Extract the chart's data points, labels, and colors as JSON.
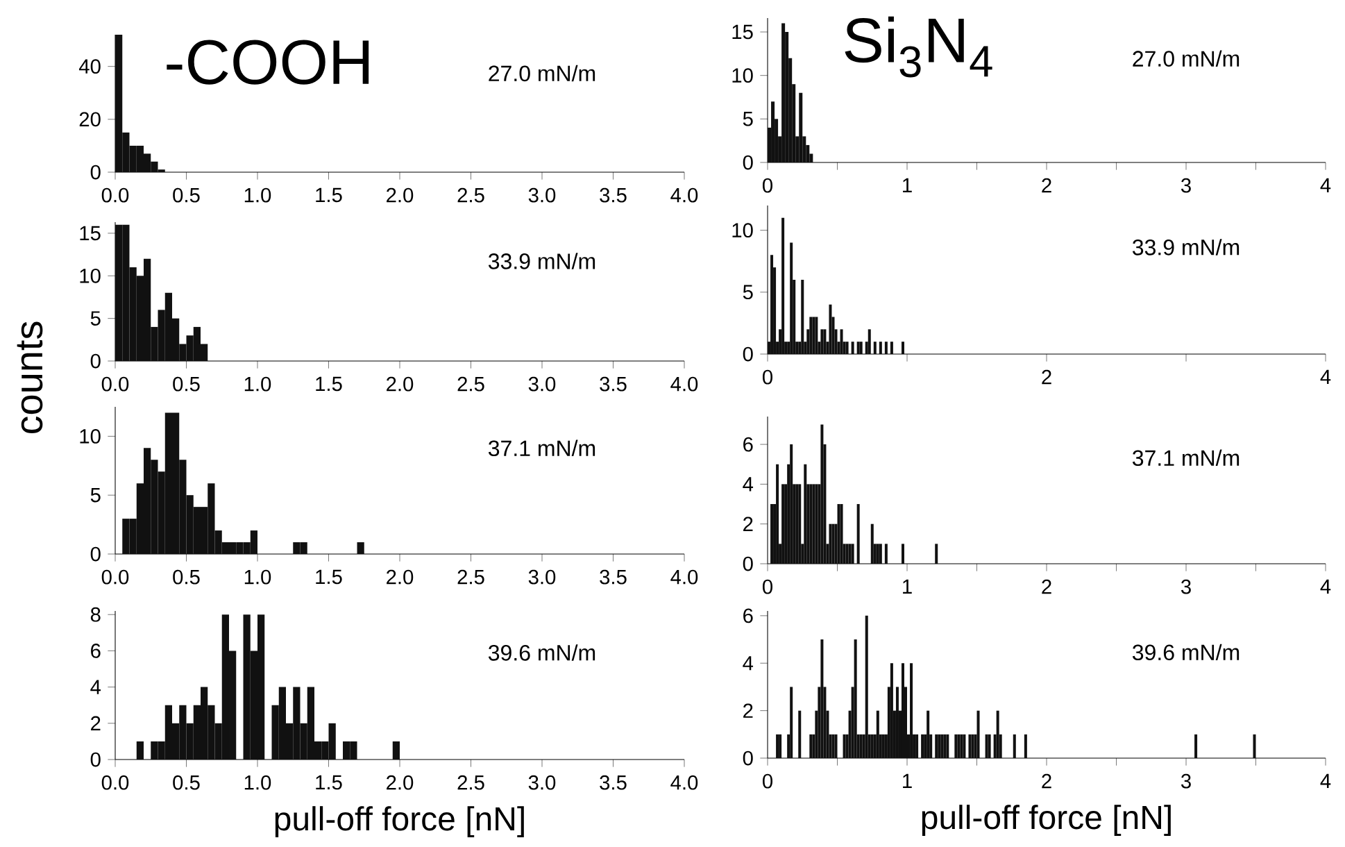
{
  "chart_data": [
    {
      "type": "histogram",
      "color": "#111111",
      "annotations": [
        "27.0 mN/m",
        "-COOH"
      ],
      "xlim": [
        0,
        4
      ],
      "ylim": [
        0,
        52
      ],
      "yticks": [
        0,
        20,
        40
      ],
      "xticks": [
        {
          "value": 0,
          "label": "0.0"
        },
        {
          "value": 0.5,
          "label": "0.5"
        },
        {
          "value": 1,
          "label": "1.0"
        },
        {
          "value": 1.5,
          "label": "1.5"
        },
        {
          "value": 2,
          "label": "2.0"
        },
        {
          "value": 2.5,
          "label": "2.5"
        },
        {
          "value": 3,
          "label": "3.0"
        },
        {
          "value": 3.5,
          "label": "3.5"
        },
        {
          "value": 4,
          "label": "4.0"
        }
      ],
      "bins": [
        0,
        0.05,
        0.1,
        0.15,
        0.2,
        0.25,
        0.3,
        0.35
      ],
      "values": [
        52,
        15,
        10,
        10,
        7,
        4,
        1
      ]
    },
    {
      "type": "histogram",
      "color": "#111111",
      "annotations": [
        "27.0 mN/m",
        "Si$_{3}$N$_{4}$"
      ],
      "xlim": [
        0,
        4
      ],
      "ylim": [
        0,
        16.6
      ],
      "yticks": [
        0,
        5,
        10,
        15
      ],
      "xticks": [
        0,
        {
          "value": 0.5,
          "label": null
        },
        1,
        {
          "value": 1.5,
          "label": null
        },
        2,
        {
          "value": 2.5,
          "label": null
        },
        3,
        {
          "value": 3.5,
          "label": null
        },
        4
      ],
      "bins": [
        0,
        0.025,
        0.05,
        0.075,
        0.1,
        0.125,
        0.15,
        0.175,
        0.2,
        0.225,
        0.25,
        0.275,
        0.3,
        0.325
      ],
      "values": [
        4,
        7,
        5,
        3,
        16,
        15,
        12,
        9,
        3,
        8,
        3,
        2,
        1
      ]
    },
    {
      "type": "histogram",
      "color": "#111111",
      "annotations": [
        "33.9 mN/m"
      ],
      "ylabel": "counts",
      "xlim": [
        0,
        4
      ],
      "ylim": [
        0,
        16.3
      ],
      "yticks": [
        0,
        5,
        10,
        15
      ],
      "xticks": [
        {
          "value": 0,
          "label": "0.0"
        },
        {
          "value": 0.5,
          "label": "0.5"
        },
        {
          "value": 1,
          "label": "1.0"
        },
        {
          "value": 1.5,
          "label": "1.5"
        },
        {
          "value": 2,
          "label": "2.0"
        },
        {
          "value": 2.5,
          "label": "2.5"
        },
        {
          "value": 3,
          "label": "3.0"
        },
        {
          "value": 3.5,
          "label": "3.5"
        },
        {
          "value": 4,
          "label": "4.0"
        }
      ],
      "bins": [
        0,
        0.05,
        0.1,
        0.15,
        0.2,
        0.25,
        0.3,
        0.35,
        0.4,
        0.45,
        0.5,
        0.55,
        0.6,
        0.65
      ],
      "values": [
        16,
        16,
        11,
        10,
        12,
        4,
        6,
        8,
        5,
        2,
        3,
        4,
        2
      ]
    },
    {
      "type": "histogram",
      "color": "#111111",
      "annotations": [
        "33.9 mN/m"
      ],
      "xlim": [
        0,
        4
      ],
      "ylim": [
        0,
        12
      ],
      "yticks": [
        0,
        5,
        10
      ],
      "xticks": [
        0,
        {
          "value": 1,
          "label": null
        },
        2,
        {
          "value": 3,
          "label": null
        },
        4
      ],
      "bins": [
        0,
        0.02,
        0.04,
        0.06,
        0.08,
        0.1,
        0.12,
        0.14,
        0.16,
        0.18,
        0.2,
        0.22,
        0.24,
        0.26,
        0.28,
        0.3,
        0.32,
        0.34,
        0.36,
        0.38,
        0.4,
        0.42,
        0.44,
        0.46,
        0.48,
        0.5,
        0.52,
        0.54,
        0.56,
        0.58,
        0.6,
        0.62,
        0.64,
        0.66,
        0.68,
        0.7,
        0.72,
        0.74,
        0.76,
        0.78,
        0.8,
        0.82,
        0.84,
        0.86,
        0.88,
        0.9,
        0.92,
        0.94,
        0.96,
        0.98
      ],
      "values": [
        1,
        8,
        7,
        1,
        2,
        11,
        1,
        1,
        9,
        6,
        1,
        1,
        6,
        1,
        2,
        3,
        3,
        3,
        1,
        2,
        2,
        1,
        4,
        3,
        2,
        1,
        2,
        1,
        1,
        0,
        1,
        0,
        1,
        1,
        0,
        1,
        2,
        0,
        1,
        0,
        1,
        0,
        1,
        0,
        1,
        0,
        0,
        0,
        1
      ]
    },
    {
      "type": "histogram",
      "color": "#111111",
      "annotations": [
        "37.1 mN/m"
      ],
      "xlim": [
        0,
        4
      ],
      "ylim": [
        0,
        12.5
      ],
      "yticks": [
        0,
        5,
        10
      ],
      "xticks": [
        {
          "value": 0,
          "label": "0.0"
        },
        {
          "value": 0.5,
          "label": "0.5"
        },
        {
          "value": 1,
          "label": "1.0"
        },
        {
          "value": 1.5,
          "label": "1.5"
        },
        {
          "value": 2,
          "label": "2.0"
        },
        {
          "value": 2.5,
          "label": "2.5"
        },
        {
          "value": 3,
          "label": "3.0"
        },
        {
          "value": 3.5,
          "label": "3.5"
        },
        {
          "value": 4,
          "label": "4.0"
        }
      ],
      "bins": [
        0.05,
        0.1,
        0.15,
        0.2,
        0.25,
        0.3,
        0.35,
        0.4,
        0.45,
        0.5,
        0.55,
        0.6,
        0.65,
        0.7,
        0.75,
        0.8,
        0.85,
        0.9,
        0.95,
        1.0,
        1.05,
        1.1,
        1.15,
        1.2,
        1.25,
        1.3,
        1.35,
        1.4,
        1.45,
        1.5,
        1.55,
        1.6,
        1.65,
        1.7,
        1.75
      ],
      "values": [
        3,
        3,
        6,
        9,
        8,
        7,
        12,
        12,
        8,
        5,
        4,
        4,
        6,
        2,
        1,
        1,
        1,
        1,
        2,
        0,
        0,
        0,
        0,
        0,
        1,
        1,
        0,
        0,
        0,
        0,
        0,
        0,
        0,
        1
      ]
    },
    {
      "type": "histogram",
      "color": "#111111",
      "annotations": [
        "37.1 mN/m"
      ],
      "xlim": [
        0,
        4
      ],
      "ylim": [
        0,
        7.4
      ],
      "yticks": [
        0,
        2,
        4,
        6
      ],
      "xticks": [
        0,
        {
          "value": 0.5,
          "label": null
        },
        1,
        {
          "value": 1.5,
          "label": null
        },
        2,
        {
          "value": 2.5,
          "label": null
        },
        3,
        {
          "value": 3.5,
          "label": null
        },
        4
      ],
      "bins": [
        0,
        0.02,
        0.04,
        0.06,
        0.08,
        0.1,
        0.12,
        0.14,
        0.16,
        0.18,
        0.2,
        0.22,
        0.24,
        0.26,
        0.28,
        0.3,
        0.32,
        0.34,
        0.36,
        0.38,
        0.4,
        0.42,
        0.44,
        0.46,
        0.48,
        0.5,
        0.52,
        0.54,
        0.56,
        0.58,
        0.6,
        0.62,
        0.64,
        0.66,
        0.68,
        0.7,
        0.72,
        0.74,
        0.76,
        0.78,
        0.8,
        0.82,
        0.84,
        0.86,
        0.88,
        0.9,
        0.92,
        0.94,
        0.96,
        0.98,
        1.0,
        1.02,
        1.04,
        1.06,
        1.08,
        1.1,
        1.12,
        1.14,
        1.16,
        1.18,
        1.2,
        1.22
      ],
      "values": [
        0,
        3,
        3,
        5,
        1,
        4,
        4,
        5,
        6,
        4,
        4,
        4,
        1,
        5,
        4,
        4,
        4,
        4,
        4,
        7,
        6,
        1,
        2,
        2,
        2,
        3,
        3,
        1,
        1,
        1,
        1,
        0,
        3,
        0,
        0,
        0,
        0,
        2,
        1,
        1,
        1,
        0,
        1,
        0,
        0,
        0,
        0,
        0,
        1,
        0,
        0,
        0,
        0,
        0,
        0,
        0,
        0,
        0,
        0,
        0,
        1
      ]
    },
    {
      "type": "histogram",
      "color": "#111111",
      "annotations": [
        "39.6 mN/m"
      ],
      "xlabel": "pull-off force [nN]",
      "xlim": [
        0,
        4
      ],
      "ylim": [
        0,
        8.2
      ],
      "yticks": [
        0,
        2,
        4,
        6,
        8
      ],
      "xticks": [
        {
          "value": 0,
          "label": "0.0"
        },
        {
          "value": 0.5,
          "label": "0.5"
        },
        {
          "value": 1,
          "label": "1.0"
        },
        {
          "value": 1.5,
          "label": "1.5"
        },
        {
          "value": 2,
          "label": "2.0"
        },
        {
          "value": 2.5,
          "label": "2.5"
        },
        {
          "value": 3,
          "label": "3.0"
        },
        {
          "value": 3.5,
          "label": "3.5"
        },
        {
          "value": 4,
          "label": "4.0"
        }
      ],
      "bins": [
        0.15,
        0.2,
        0.25,
        0.3,
        0.35,
        0.4,
        0.45,
        0.5,
        0.55,
        0.6,
        0.65,
        0.7,
        0.75,
        0.8,
        0.85,
        0.9,
        0.95,
        1.0,
        1.05,
        1.1,
        1.15,
        1.2,
        1.25,
        1.3,
        1.35,
        1.4,
        1.45,
        1.5,
        1.55,
        1.6,
        1.65,
        1.7,
        1.75,
        1.8,
        1.85,
        1.9,
        1.95,
        2.0
      ],
      "values": [
        1,
        0,
        1,
        1,
        3,
        2,
        3,
        2,
        3,
        4,
        3,
        2,
        8,
        6,
        0,
        8,
        6,
        8,
        0,
        3,
        4,
        2,
        4,
        2,
        4,
        1,
        1,
        2,
        0,
        1,
        1,
        0,
        0,
        0,
        0,
        0,
        1
      ]
    },
    {
      "type": "histogram",
      "color": "#111111",
      "annotations": [
        "39.6 mN/m"
      ],
      "xlabel": "pull-off force [nN]",
      "xlim": [
        0,
        4
      ],
      "ylim": [
        0,
        6.2
      ],
      "yticks": [
        0,
        2,
        4,
        6
      ],
      "xticks": [
        0,
        {
          "value": 0.5,
          "label": null
        },
        1,
        {
          "value": 1.5,
          "label": null
        },
        2,
        {
          "value": 2.5,
          "label": null
        },
        3,
        {
          "value": 3.5,
          "label": null
        },
        4
      ],
      "bins": [
        0,
        0.02,
        0.04,
        0.06,
        0.08,
        0.1,
        0.12,
        0.14,
        0.16,
        0.18,
        0.2,
        0.22,
        0.24,
        0.26,
        0.28,
        0.3,
        0.32,
        0.34,
        0.36,
        0.38,
        0.4,
        0.42,
        0.44,
        0.46,
        0.48,
        0.5,
        0.52,
        0.54,
        0.56,
        0.58,
        0.6,
        0.62,
        0.64,
        0.66,
        0.68,
        0.7,
        0.72,
        0.74,
        0.76,
        0.78,
        0.8,
        0.82,
        0.84,
        0.86,
        0.88,
        0.9,
        0.92,
        0.94,
        0.96,
        0.98,
        1.0,
        1.02,
        1.04,
        1.06,
        1.08,
        1.1,
        1.12,
        1.14,
        1.16,
        1.18,
        1.2,
        1.22,
        1.24,
        1.26,
        1.28,
        1.3,
        1.32,
        1.34,
        1.36,
        1.38,
        1.4,
        1.42,
        1.44,
        1.46,
        1.48,
        1.5,
        1.52,
        1.54,
        1.56,
        1.58,
        1.6,
        1.62,
        1.64,
        1.66,
        1.68,
        1.7,
        1.72,
        1.74,
        1.76,
        1.78,
        1.8,
        1.82,
        1.84,
        1.86,
        1.88,
        1.9,
        1.92,
        1.94,
        1.96,
        1.98,
        2.0,
        2.02,
        2.04,
        2.06,
        2.08,
        2.1,
        2.12,
        2.14,
        2.16,
        2.18,
        2.2,
        2.22,
        2.24,
        2.26,
        2.28,
        2.3,
        2.32,
        2.34,
        2.36,
        2.38,
        2.4,
        2.42,
        2.44,
        2.46,
        2.48,
        2.5,
        2.52,
        2.54,
        2.56,
        2.58,
        2.6,
        2.62,
        2.64,
        2.66,
        2.68,
        2.7,
        2.72,
        2.74,
        2.76,
        2.78,
        2.8,
        2.82,
        2.84,
        2.86,
        2.88,
        2.9,
        2.92,
        2.94,
        2.96,
        2.98,
        3.0,
        3.02,
        3.04,
        3.06,
        3.08,
        3.1,
        3.12,
        3.14,
        3.16,
        3.18,
        3.2,
        3.22,
        3.24,
        3.26,
        3.28,
        3.3,
        3.32,
        3.34,
        3.36,
        3.38,
        3.4,
        3.42,
        3.44,
        3.46,
        3.48,
        3.5
      ],
      "values": [
        0,
        0,
        0,
        1,
        1,
        0,
        0,
        1,
        3,
        0,
        0,
        2,
        0,
        0,
        0,
        1,
        1,
        2,
        3,
        5,
        3,
        2,
        1,
        1,
        1,
        0,
        0,
        1,
        1,
        2,
        3,
        5,
        1,
        1,
        1,
        6,
        1,
        1,
        1,
        2,
        1,
        1,
        1,
        3,
        4,
        2,
        3,
        2,
        4,
        3,
        1,
        4,
        1,
        1,
        0,
        1,
        1,
        2,
        1,
        0,
        1,
        1,
        1,
        1,
        1,
        0,
        0,
        1,
        1,
        1,
        1,
        0,
        1,
        1,
        1,
        2,
        0,
        0,
        1,
        1,
        0,
        1,
        2,
        1,
        0,
        0,
        0,
        0,
        1,
        0,
        0,
        0,
        1,
        0,
        0,
        0,
        0,
        0,
        0,
        0,
        0,
        0,
        0,
        0,
        0,
        0,
        0,
        0,
        0,
        0,
        0,
        0,
        0,
        0,
        0,
        0,
        0,
        0,
        0,
        0,
        0,
        0,
        0,
        0,
        0,
        0,
        0,
        0,
        0,
        0,
        0,
        0,
        0,
        0,
        0,
        0,
        0,
        0,
        0,
        0,
        0,
        0,
        0,
        0,
        0,
        0,
        0,
        0,
        0,
        0,
        0,
        0,
        0,
        1,
        0,
        0,
        0,
        0,
        0,
        0,
        0,
        0,
        0,
        0,
        0,
        0,
        0,
        0,
        0,
        0,
        0,
        0,
        0,
        0,
        1
      ]
    }
  ]
}
